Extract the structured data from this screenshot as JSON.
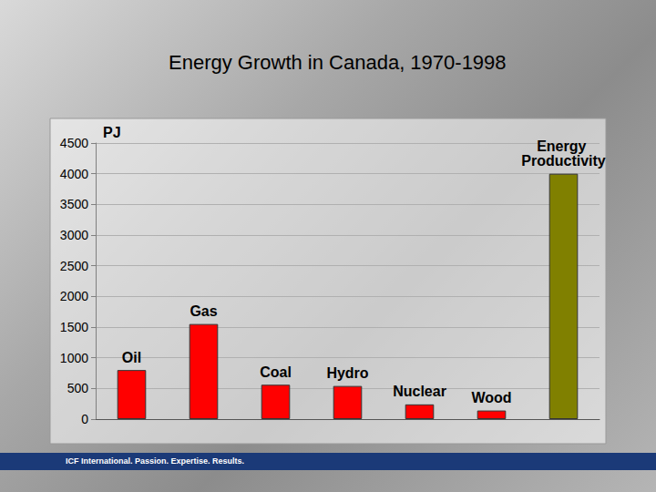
{
  "chart_data": {
    "type": "bar",
    "title": "Energy Growth in Canada, 1970-1998",
    "y_label": "PJ",
    "categories": [
      "Oil",
      "Gas",
      "Coal",
      "Hydro",
      "Nuclear",
      "Wood",
      "Energy Productivity"
    ],
    "values": [
      800,
      1550,
      560,
      540,
      240,
      140,
      4000
    ],
    "colors": [
      "#ff0000",
      "#ff0000",
      "#ff0000",
      "#ff0000",
      "#ff0000",
      "#ff0000",
      "#808000"
    ],
    "ylim": [
      0,
      4500
    ],
    "yticks": [
      0,
      500,
      1000,
      1500,
      2000,
      2500,
      3000,
      3500,
      4000,
      4500
    ],
    "grid": true,
    "tick_labels": "y",
    "annotations": [
      "ICF International. Passion. Expertise. Results."
    ]
  }
}
